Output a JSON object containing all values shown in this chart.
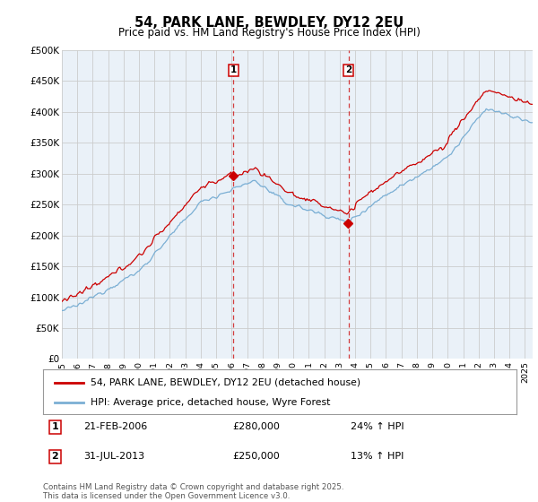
{
  "title": "54, PARK LANE, BEWDLEY, DY12 2EU",
  "subtitle": "Price paid vs. HM Land Registry's House Price Index (HPI)",
  "ylim": [
    0,
    500000
  ],
  "yticks": [
    0,
    50000,
    100000,
    150000,
    200000,
    250000,
    300000,
    350000,
    400000,
    450000,
    500000
  ],
  "ytick_labels": [
    "£0",
    "£50K",
    "£100K",
    "£150K",
    "£200K",
    "£250K",
    "£300K",
    "£350K",
    "£400K",
    "£450K",
    "£500K"
  ],
  "line1_color": "#cc0000",
  "line2_color": "#7bafd4",
  "shading_color": "#d6e8f7",
  "grid_color": "#cccccc",
  "bg_color": "#eaf1f8",
  "transaction1_date": "21-FEB-2006",
  "transaction1_price": 280000,
  "transaction1_hpi": "24% ↑ HPI",
  "transaction2_date": "31-JUL-2013",
  "transaction2_price": 250000,
  "transaction2_hpi": "13% ↑ HPI",
  "vline1_x": 2006.12,
  "vline2_x": 2013.58,
  "legend1": "54, PARK LANE, BEWDLEY, DY12 2EU (detached house)",
  "legend2": "HPI: Average price, detached house, Wyre Forest",
  "footnote": "Contains HM Land Registry data © Crown copyright and database right 2025.\nThis data is licensed under the Open Government Licence v3.0.",
  "xmin": 1995,
  "xmax": 2025.5
}
